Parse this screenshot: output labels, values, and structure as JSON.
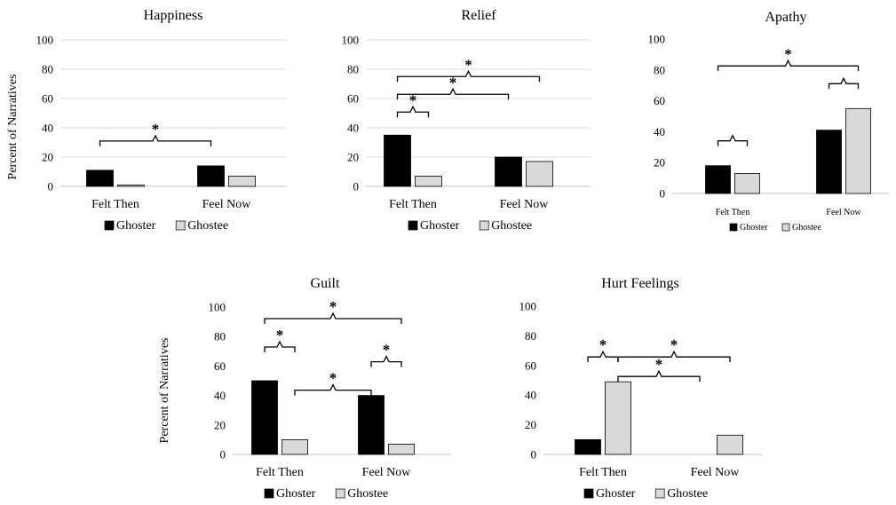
{
  "y_axis_label": "Percent of Narratives",
  "colors": {
    "ghoster": "#000000",
    "ghostee": "#d9d9d9",
    "bar_outline": "#000000"
  },
  "chart_data": [
    {
      "type": "bar",
      "title": "Happiness",
      "categories": [
        "Felt Then",
        "Feel Now"
      ],
      "series": [
        {
          "name": "Ghoster",
          "values": [
            11,
            14
          ]
        },
        {
          "name": "Ghostee",
          "values": [
            1,
            7
          ]
        }
      ],
      "ylim": [
        0,
        100
      ],
      "yticks": [
        0,
        20,
        40,
        60,
        80,
        100
      ],
      "ylabel": "Percent of Narratives",
      "grid": true,
      "legend": "bottom",
      "significance": [
        {
          "from": [
            0,
            0
          ],
          "to": [
            1,
            0
          ],
          "level": 1,
          "label": "*"
        }
      ]
    },
    {
      "type": "bar",
      "title": "Relief",
      "categories": [
        "Felt Then",
        "Feel Now"
      ],
      "series": [
        {
          "name": "Ghoster",
          "values": [
            35,
            20
          ]
        },
        {
          "name": "Ghostee",
          "values": [
            7,
            17
          ]
        }
      ],
      "ylim": [
        0,
        100
      ],
      "yticks": [
        0,
        20,
        40,
        60,
        80,
        100
      ],
      "ylabel": "",
      "grid": true,
      "legend": "bottom",
      "significance": [
        {
          "from": [
            0,
            0
          ],
          "to": [
            0,
            1
          ],
          "level": 1,
          "label": "*"
        },
        {
          "from": [
            0,
            0
          ],
          "to": [
            1,
            0
          ],
          "level": 2,
          "label": "*"
        },
        {
          "from": [
            0,
            0
          ],
          "to": [
            1,
            1
          ],
          "level": 3,
          "label": "*"
        }
      ]
    },
    {
      "type": "bar",
      "title": "Apathy",
      "categories": [
        "Felt Then",
        "Feel Now"
      ],
      "series": [
        {
          "name": "Ghoster",
          "values": [
            18,
            41
          ]
        },
        {
          "name": "Ghostee",
          "values": [
            13,
            55
          ]
        }
      ],
      "ylim": [
        0,
        100
      ],
      "yticks": [
        0,
        20,
        40,
        60,
        80,
        100
      ],
      "ylabel": "",
      "grid": false,
      "legend": "bottom",
      "significance": [
        {
          "from": [
            0,
            0
          ],
          "to": [
            0,
            1
          ],
          "level": 1,
          "label": ""
        },
        {
          "from": [
            1,
            0
          ],
          "to": [
            1,
            1
          ],
          "level": 1,
          "label": ""
        },
        {
          "from": [
            0,
            0
          ],
          "to": [
            1,
            1
          ],
          "level": 2,
          "label": "*"
        }
      ]
    },
    {
      "type": "bar",
      "title": "Guilt",
      "categories": [
        "Felt Then",
        "Feel Now"
      ],
      "series": [
        {
          "name": "Ghoster",
          "values": [
            50,
            40
          ]
        },
        {
          "name": "Ghostee",
          "values": [
            10,
            7
          ]
        }
      ],
      "ylim": [
        0,
        100
      ],
      "yticks": [
        0,
        20,
        40,
        60,
        80,
        100
      ],
      "ylabel": "Percent of Narratives",
      "grid": false,
      "legend": "bottom",
      "significance": [
        {
          "from": [
            0,
            0
          ],
          "to": [
            0,
            1
          ],
          "level": 1,
          "label": "*"
        },
        {
          "from": [
            1,
            0
          ],
          "to": [
            1,
            1
          ],
          "level": 1,
          "label": "*"
        },
        {
          "from": [
            0,
            1
          ],
          "to": [
            1,
            0
          ],
          "level": 0,
          "label": "*"
        },
        {
          "from": [
            0,
            0
          ],
          "to": [
            1,
            1
          ],
          "level": 2,
          "label": "*"
        }
      ]
    },
    {
      "type": "bar",
      "title": "Hurt Feelings",
      "categories": [
        "Felt Then",
        "Feel Now"
      ],
      "series": [
        {
          "name": "Ghoster",
          "values": [
            10,
            0
          ]
        },
        {
          "name": "Ghostee",
          "values": [
            49,
            13
          ]
        }
      ],
      "ylim": [
        0,
        100
      ],
      "yticks": [
        0,
        20,
        40,
        60,
        80,
        100
      ],
      "ylabel": "",
      "grid": false,
      "legend": "bottom",
      "significance": [
        {
          "from": [
            0,
            0
          ],
          "to": [
            0,
            1
          ],
          "level": 1,
          "label": "*"
        },
        {
          "from": [
            0,
            1
          ],
          "to": [
            1,
            0
          ],
          "level": 0,
          "label": "*"
        },
        {
          "from": [
            0,
            1
          ],
          "to": [
            1,
            1
          ],
          "level": 1,
          "label": "*"
        }
      ]
    }
  ]
}
